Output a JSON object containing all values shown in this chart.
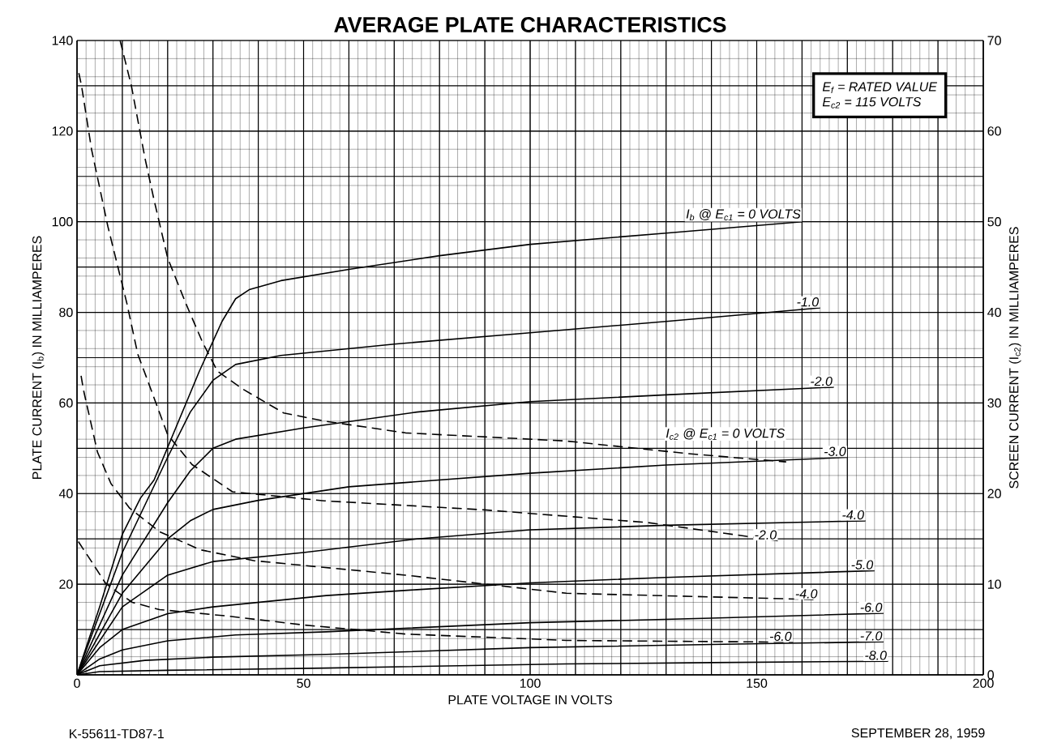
{
  "chart_data": {
    "type": "line",
    "title": "AVERAGE PLATE CHARACTERISTICS",
    "xlabel": "PLATE VOLTAGE IN VOLTS",
    "ylabel": "PLATE CURRENT (I$_{b}$) IN MILLIAMPERES",
    "y2label": "SCREEN CURRENT (I$_{c2}$) IN MILLIAMPERES",
    "xlim": [
      0,
      200
    ],
    "xticks": [
      0,
      50,
      100,
      150,
      200
    ],
    "ylim": [
      0,
      140
    ],
    "yticks": [
      {
        "value": 0,
        "label": null
      },
      20,
      40,
      60,
      80,
      100,
      120,
      140
    ],
    "y2lim": [
      0,
      70
    ],
    "y2ticks": [
      0,
      10,
      20,
      30,
      40,
      50,
      60,
      70
    ],
    "grid": true,
    "annotations": [
      "E$_{f}$ = RATED VALUE",
      "E$_{c2}$ = 115 VOLTS",
      "K-55611-TD87-1",
      "SEPTEMBER 28, 1959"
    ],
    "series": [
      {
        "name": "I$_{b}$ @ E$_{c1}$ = 0 VOLTS",
        "color": "#000000",
        "line_style": "solid",
        "x": [
          0,
          5,
          10,
          14,
          17,
          22,
          27,
          32,
          35,
          38,
          45,
          60,
          80,
          100,
          130,
          160
        ],
        "values": [
          0,
          15,
          31,
          39,
          43,
          55,
          67,
          78,
          83,
          85,
          87,
          89.5,
          92.5,
          95,
          97.5,
          100
        ]
      },
      {
        "name": "-1.0",
        "color": "#000000",
        "line_style": "solid",
        "x": [
          0,
          10,
          20,
          25,
          30,
          35,
          45,
          70,
          100,
          130,
          164
        ],
        "values": [
          0,
          27,
          48,
          58,
          65,
          68.5,
          70.5,
          73,
          75.5,
          78,
          81
        ]
      },
      {
        "name": "-2.0",
        "color": "#000000",
        "line_style": "solid",
        "x": [
          0,
          10,
          20,
          25,
          30,
          35,
          50,
          75,
          100,
          130,
          167
        ],
        "values": [
          0,
          22,
          38,
          45,
          50,
          52,
          54.5,
          58,
          60.3,
          61.8,
          63.5
        ]
      },
      {
        "name": "-3.0",
        "color": "#000000",
        "line_style": "solid",
        "x": [
          0,
          10,
          20,
          25,
          30,
          40,
          60,
          100,
          130,
          170
        ],
        "values": [
          0,
          18,
          30,
          34,
          36.5,
          38.5,
          41.5,
          44.5,
          46.3,
          48
        ]
      },
      {
        "name": "-4.0",
        "color": "#000000",
        "line_style": "solid",
        "x": [
          0,
          10,
          20,
          30,
          50,
          75,
          100,
          130,
          174
        ],
        "values": [
          0,
          15,
          22,
          25,
          27,
          30,
          32,
          33,
          34
        ]
      },
      {
        "name": "-5.0",
        "color": "#000000",
        "line_style": "solid",
        "x": [
          0,
          5,
          10,
          20,
          30,
          55,
          75,
          100,
          130,
          176
        ],
        "values": [
          0,
          6,
          10,
          13.5,
          15,
          17.5,
          18.8,
          20.3,
          21.5,
          23
        ]
      },
      {
        "name": "-6.0",
        "color": "#000000",
        "line_style": "solid",
        "x": [
          0,
          5,
          10,
          20,
          35,
          55,
          100,
          140,
          178
        ],
        "values": [
          0,
          3.5,
          5.5,
          7.5,
          8.8,
          9.5,
          11.5,
          12.5,
          13.6
        ]
      },
      {
        "name": "-7.0",
        "color": "#000000",
        "line_style": "solid",
        "x": [
          0,
          5,
          15,
          30,
          55,
          100,
          140,
          178
        ],
        "values": [
          0,
          2,
          3.2,
          3.9,
          4.5,
          6,
          6.7,
          7.3
        ]
      },
      {
        "name": "-8.0",
        "color": "#000000",
        "line_style": "solid",
        "x": [
          0,
          5,
          20,
          55,
          108,
          140,
          179
        ],
        "values": [
          0,
          0.7,
          1,
          1.5,
          2.4,
          2.7,
          3
        ]
      },
      {
        "name": "I$_{c2}$ @ E$_{c1}$ = 0 VOLTS",
        "color": "#000000",
        "line_style": "dashed",
        "axis": "y2",
        "x": [
          9.5,
          12,
          15,
          17,
          20,
          24,
          27.7,
          31,
          36.7,
          45.6,
          54.6,
          72.5,
          108,
          135,
          156.5
        ],
        "values": [
          70,
          65,
          57,
          52.4,
          46,
          41,
          36.7,
          33.5,
          31.5,
          28.9,
          28,
          26.7,
          25.8,
          24.4,
          23.5
        ]
      },
      {
        "name": "-2.0",
        "color": "#000000",
        "line_style": "dashed",
        "axis": "y2",
        "x": [
          0.4,
          1,
          3.2,
          6.8,
          11,
          13.4,
          15.2,
          20,
          25.4,
          34.3,
          54.6,
          90,
          126,
          154.7
        ],
        "values": [
          66.4,
          65,
          58,
          49.5,
          41,
          35.4,
          33,
          26.5,
          23.2,
          20.2,
          19.2,
          18.2,
          16.8,
          14.8
        ]
      },
      {
        "name": "-4.0",
        "color": "#000000",
        "line_style": "dashed",
        "axis": "y2",
        "x": [
          0.9,
          1.4,
          4.5,
          7.5,
          11.6,
          18.2,
          27.2,
          39,
          72.5,
          108,
          163.7
        ],
        "values": [
          33,
          31.5,
          24.6,
          21.1,
          18.4,
          15.8,
          13.8,
          12.6,
          11,
          9,
          8.3
        ]
      },
      {
        "name": "-6.0",
        "color": "#000000",
        "line_style": "dashed",
        "axis": "y2",
        "x": [
          0.3,
          3.2,
          6.3,
          9.3,
          12.2,
          18.2,
          33,
          50,
          72.5,
          108,
          158
        ],
        "values": [
          14.7,
          12.5,
          10.1,
          9,
          8,
          7.2,
          6.5,
          5.5,
          4.5,
          3.8,
          3.6
        ]
      }
    ]
  }
}
